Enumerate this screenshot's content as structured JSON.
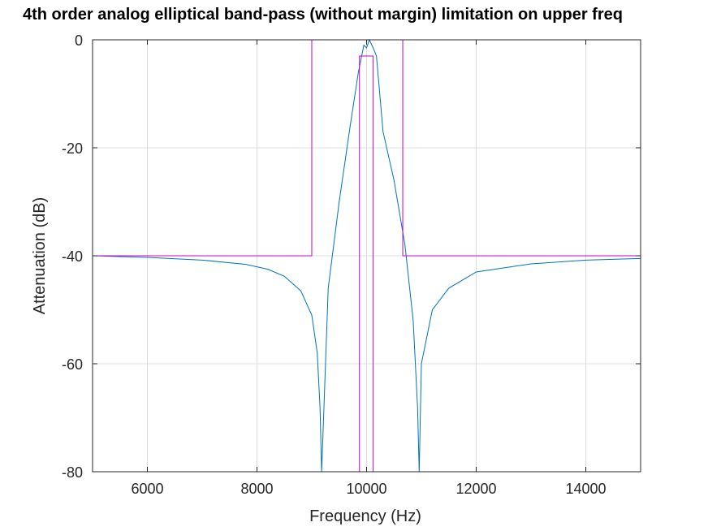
{
  "chart_data": {
    "type": "line",
    "title": "4th order analog elliptical band-pass (without margin) limitation on upper freq",
    "xlabel": "Frequency (Hz)",
    "ylabel": "Attenuation (dB)",
    "xlim": [
      5000,
      15000
    ],
    "ylim": [
      -80,
      0
    ],
    "xticks": [
      6000,
      8000,
      10000,
      12000,
      14000
    ],
    "yticks": [
      0,
      -20,
      -40,
      -60,
      -80
    ],
    "grid": true,
    "colors": {
      "response": "#0072bd",
      "mask": "#c800c8",
      "axes": "#262626"
    },
    "series": [
      {
        "role": "response",
        "color": "#0072bd",
        "x": [
          5000,
          6000,
          7000,
          7800,
          8200,
          8500,
          8800,
          9000,
          9100,
          9150,
          9180,
          9300,
          9500,
          9700,
          9850,
          9950,
          10000,
          10050,
          10120,
          10180,
          10300,
          10500,
          10700,
          10850,
          10930,
          10960,
          11000,
          11200,
          11500,
          12000,
          13000,
          14000,
          15000
        ],
        "y": [
          -40,
          -40.3,
          -40.8,
          -41.6,
          -42.5,
          -43.8,
          -46.5,
          -51,
          -58,
          -68,
          -80,
          -46,
          -30,
          -16,
          -6,
          -1,
          -1.5,
          0,
          -1.5,
          -3,
          -17,
          -26,
          -38,
          -52,
          -68,
          -80,
          -60,
          -50,
          -46,
          -43,
          -41.5,
          -40.8,
          -40.5
        ]
      },
      {
        "role": "mask-outer",
        "color": "#c800c8",
        "x": [
          5000,
          9000,
          9000,
          10660,
          10660,
          15000
        ],
        "y": [
          -40,
          -40,
          0,
          0,
          -40,
          -40
        ]
      },
      {
        "role": "mask-inner",
        "color": "#c800c8",
        "x": [
          9870,
          9870,
          10120,
          10120
        ],
        "y": [
          -80,
          -3,
          -3,
          -80
        ]
      }
    ]
  }
}
